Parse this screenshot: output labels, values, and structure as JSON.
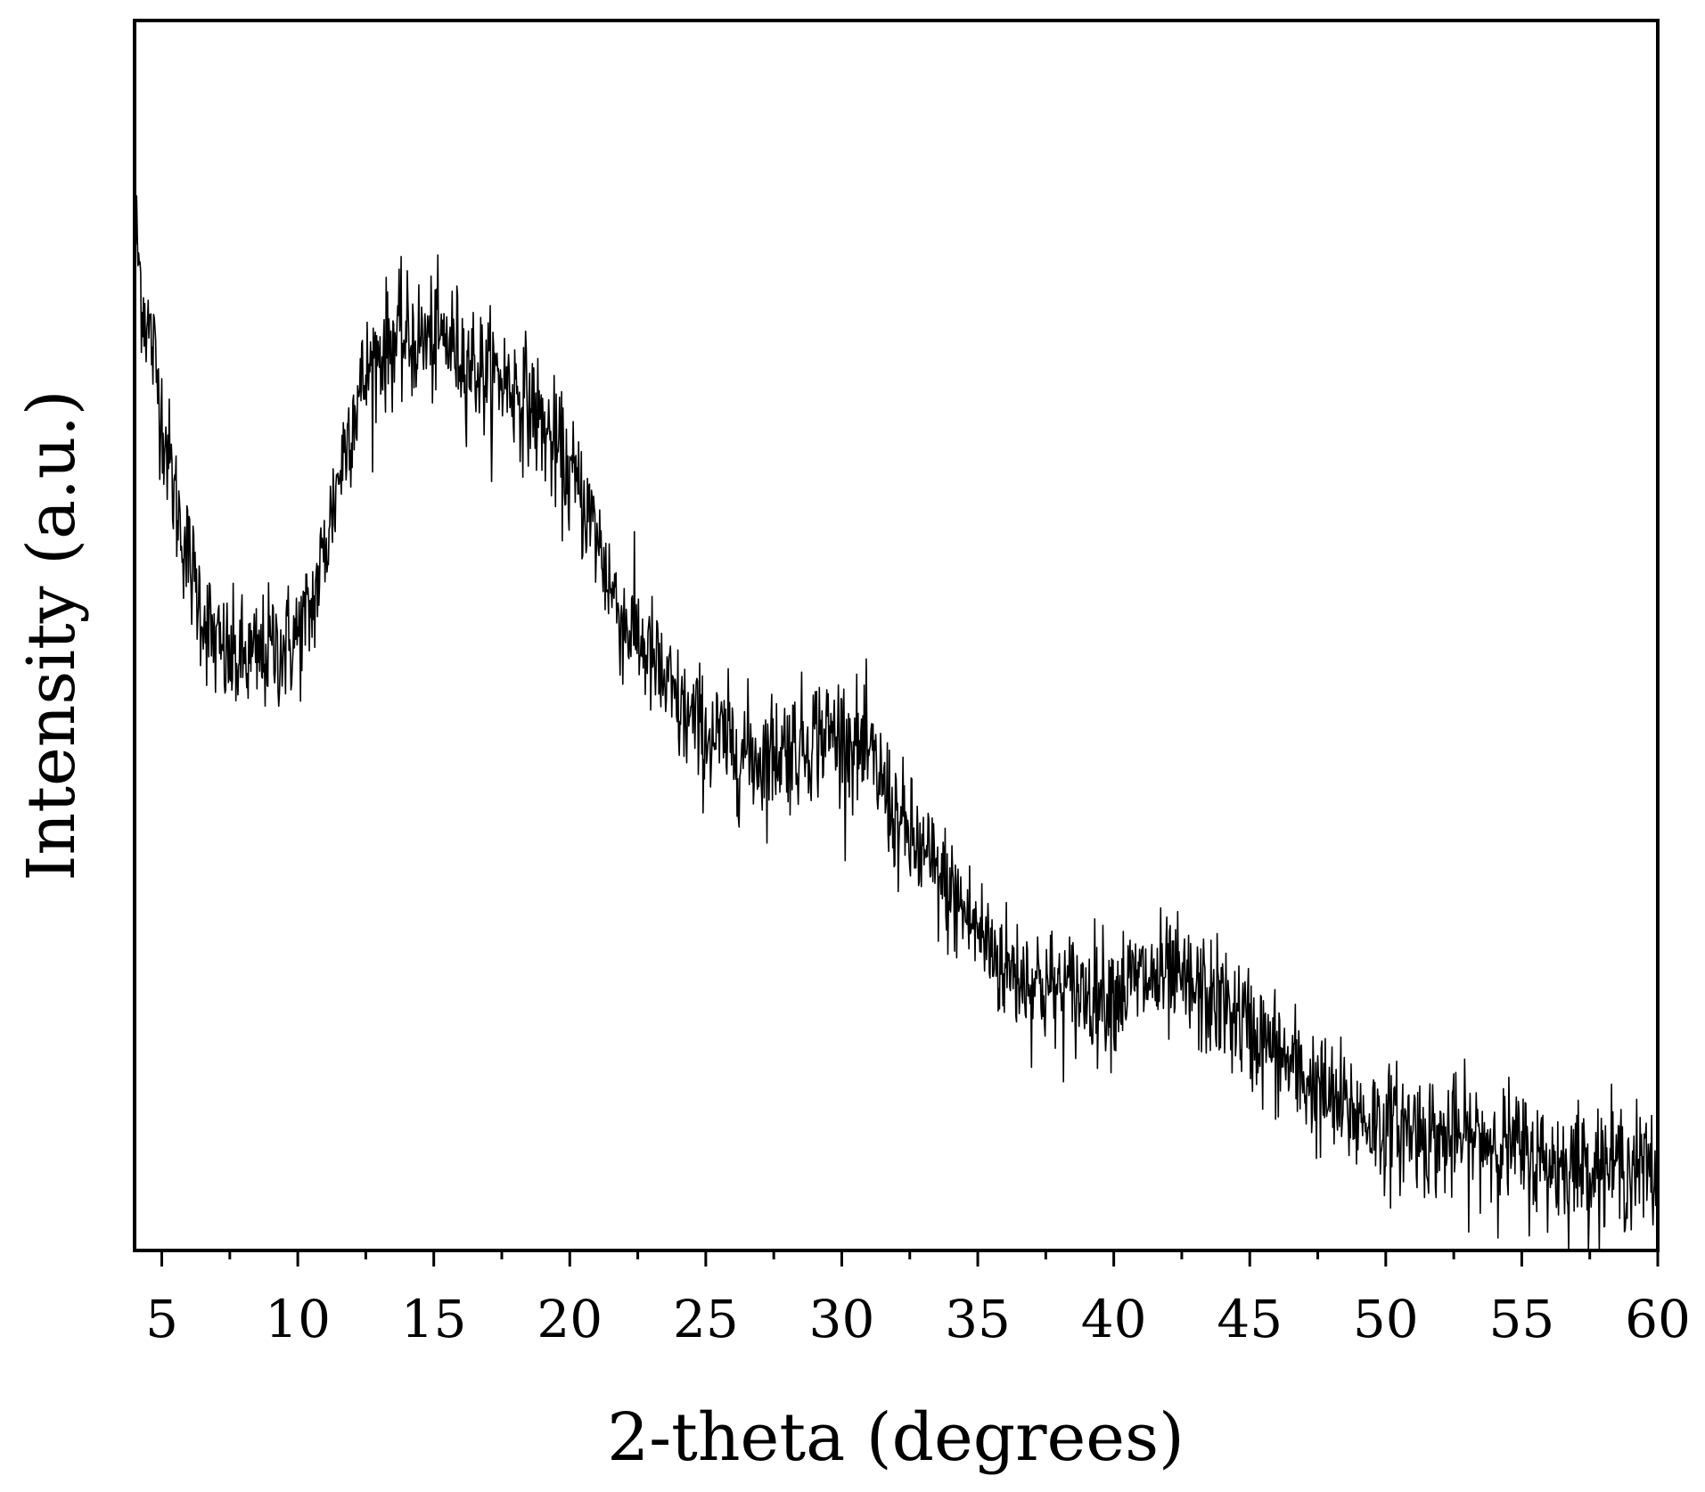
{
  "chart_data": {
    "type": "line",
    "title": "",
    "xlabel": "2-theta (degrees)",
    "ylabel": "Intensity (a.u.)",
    "xlim": [
      4,
      60
    ],
    "ylim": [
      0,
      100
    ],
    "y_tick_labels": false,
    "grid": false,
    "legend": "none",
    "x_ticks": [
      5,
      10,
      15,
      20,
      25,
      30,
      35,
      40,
      45,
      50,
      55,
      60
    ],
    "x_tick_labels": [
      "5",
      "10",
      "15",
      "20",
      "25",
      "30",
      "35",
      "40",
      "45",
      "50",
      "55",
      "60"
    ],
    "x_minor_ticks": [
      7.5,
      12.5,
      17.5,
      22.5,
      27.5,
      32.5,
      37.5,
      42.5,
      47.5,
      52.5,
      57.5
    ],
    "line_color": "#000000",
    "noise_amplitude": 2.5,
    "series": [
      {
        "name": "",
        "profile_x": [
          4.0,
          4.3,
          4.7,
          5.0,
          5.5,
          6.0,
          6.5,
          7.0,
          7.5,
          8.0,
          8.5,
          9.0,
          9.5,
          10.0,
          10.5,
          11.0,
          11.5,
          12.0,
          12.5,
          13.0,
          13.5,
          14.0,
          14.5,
          15.0,
          15.5,
          16.0,
          16.5,
          17.0,
          17.5,
          18.0,
          18.5,
          19.0,
          19.5,
          20.0,
          20.5,
          21.0,
          21.5,
          22.0,
          22.5,
          23.0,
          23.5,
          24.0,
          24.5,
          25.0,
          26.0,
          27.0,
          28.0,
          28.5,
          29.0,
          29.5,
          30.0,
          30.5,
          31.0,
          31.5,
          32.0,
          33.0,
          34.0,
          35.0,
          36.0,
          37.0,
          38.0,
          39.0,
          40.0,
          41.0,
          42.0,
          43.0,
          44.0,
          45.0,
          46.0,
          47.0,
          48.0,
          49.0,
          50.0,
          51.0,
          52.0,
          53.0,
          54.0,
          55.0,
          56.0,
          57.0,
          58.0,
          59.0,
          60.0
        ],
        "profile_y": [
          84,
          77,
          73,
          68,
          61,
          56,
          52,
          49,
          48,
          48,
          48,
          49,
          49,
          50,
          52,
          57,
          63,
          68,
          71,
          73,
          74,
          74,
          74,
          74,
          74,
          73,
          72,
          71,
          71,
          70,
          69,
          67,
          65,
          63,
          61,
          58,
          54,
          51,
          50,
          48,
          46,
          44,
          43,
          42,
          41,
          40,
          41,
          41,
          42,
          42,
          42,
          41,
          40,
          38,
          35,
          32,
          29,
          26,
          23,
          22,
          21,
          21,
          21,
          22,
          22,
          21,
          20,
          18,
          16,
          14,
          12,
          11,
          10,
          10,
          9,
          9,
          9,
          8,
          7,
          7,
          7,
          7,
          6
        ]
      }
    ]
  }
}
